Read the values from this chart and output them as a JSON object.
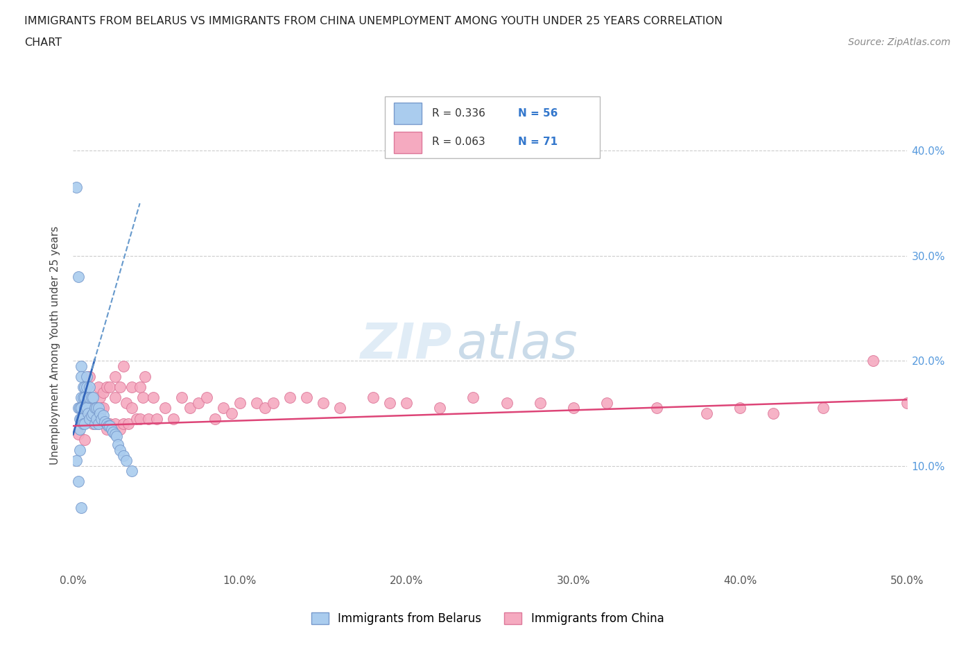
{
  "title_line1": "IMMIGRANTS FROM BELARUS VS IMMIGRANTS FROM CHINA UNEMPLOYMENT AMONG YOUTH UNDER 25 YEARS CORRELATION",
  "title_line2": "CHART",
  "source_text": "Source: ZipAtlas.com",
  "ylabel": "Unemployment Among Youth under 25 years",
  "xlim": [
    0.0,
    0.5
  ],
  "ylim": [
    0.0,
    0.43
  ],
  "xticks": [
    0.0,
    0.1,
    0.2,
    0.3,
    0.4,
    0.5
  ],
  "xticklabels": [
    "0.0%",
    "10.0%",
    "20.0%",
    "30.0%",
    "40.0%",
    "50.0%"
  ],
  "yticks_right": [
    0.1,
    0.2,
    0.3,
    0.4
  ],
  "yticklabels_right": [
    "10.0%",
    "20.0%",
    "30.0%",
    "40.0%"
  ],
  "belarus_color": "#aaccee",
  "china_color": "#f5aac0",
  "belarus_edge": "#7799cc",
  "china_edge": "#dd7799",
  "trend_belarus_solid_color": "#3366bb",
  "trend_belarus_dash_color": "#6699cc",
  "trend_china_color": "#dd4477",
  "R_belarus": 0.336,
  "N_belarus": 56,
  "R_china": 0.063,
  "N_china": 71,
  "watermark_zip": "ZIP",
  "watermark_atlas": "atlas",
  "legend_belarus": "Immigrants from Belarus",
  "legend_china": "Immigrants from China",
  "belarus_scatter_x": [
    0.002,
    0.002,
    0.003,
    0.003,
    0.003,
    0.004,
    0.004,
    0.004,
    0.004,
    0.005,
    0.005,
    0.005,
    0.005,
    0.005,
    0.005,
    0.006,
    0.006,
    0.006,
    0.007,
    0.007,
    0.007,
    0.007,
    0.008,
    0.008,
    0.008,
    0.009,
    0.009,
    0.01,
    0.01,
    0.01,
    0.011,
    0.011,
    0.012,
    0.012,
    0.013,
    0.013,
    0.014,
    0.014,
    0.015,
    0.015,
    0.016,
    0.017,
    0.018,
    0.019,
    0.02,
    0.021,
    0.022,
    0.023,
    0.024,
    0.025,
    0.026,
    0.027,
    0.028,
    0.03,
    0.032,
    0.035
  ],
  "belarus_scatter_y": [
    0.365,
    0.105,
    0.28,
    0.155,
    0.085,
    0.155,
    0.145,
    0.135,
    0.115,
    0.195,
    0.185,
    0.165,
    0.155,
    0.145,
    0.06,
    0.175,
    0.165,
    0.14,
    0.175,
    0.165,
    0.155,
    0.14,
    0.185,
    0.175,
    0.155,
    0.165,
    0.15,
    0.175,
    0.165,
    0.145,
    0.165,
    0.148,
    0.165,
    0.15,
    0.155,
    0.14,
    0.155,
    0.145,
    0.155,
    0.14,
    0.15,
    0.145,
    0.148,
    0.142,
    0.14,
    0.138,
    0.138,
    0.135,
    0.132,
    0.13,
    0.128,
    0.12,
    0.115,
    0.11,
    0.105,
    0.095
  ],
  "china_scatter_x": [
    0.003,
    0.005,
    0.007,
    0.008,
    0.01,
    0.01,
    0.012,
    0.012,
    0.013,
    0.015,
    0.015,
    0.016,
    0.017,
    0.018,
    0.018,
    0.02,
    0.02,
    0.022,
    0.022,
    0.025,
    0.025,
    0.025,
    0.028,
    0.028,
    0.03,
    0.03,
    0.032,
    0.033,
    0.035,
    0.035,
    0.038,
    0.04,
    0.04,
    0.042,
    0.043,
    0.045,
    0.048,
    0.05,
    0.055,
    0.06,
    0.065,
    0.07,
    0.075,
    0.08,
    0.085,
    0.09,
    0.095,
    0.1,
    0.11,
    0.115,
    0.12,
    0.13,
    0.14,
    0.15,
    0.16,
    0.18,
    0.19,
    0.2,
    0.22,
    0.24,
    0.26,
    0.28,
    0.3,
    0.32,
    0.35,
    0.38,
    0.4,
    0.42,
    0.45,
    0.48,
    0.5
  ],
  "china_scatter_y": [
    0.13,
    0.155,
    0.125,
    0.145,
    0.145,
    0.185,
    0.165,
    0.14,
    0.155,
    0.175,
    0.14,
    0.165,
    0.155,
    0.155,
    0.17,
    0.175,
    0.135,
    0.175,
    0.14,
    0.185,
    0.165,
    0.14,
    0.175,
    0.135,
    0.195,
    0.14,
    0.16,
    0.14,
    0.175,
    0.155,
    0.145,
    0.175,
    0.145,
    0.165,
    0.185,
    0.145,
    0.165,
    0.145,
    0.155,
    0.145,
    0.165,
    0.155,
    0.16,
    0.165,
    0.145,
    0.155,
    0.15,
    0.16,
    0.16,
    0.155,
    0.16,
    0.165,
    0.165,
    0.16,
    0.155,
    0.165,
    0.16,
    0.16,
    0.155,
    0.165,
    0.16,
    0.16,
    0.155,
    0.16,
    0.155,
    0.15,
    0.155,
    0.15,
    0.155,
    0.2,
    0.16
  ]
}
